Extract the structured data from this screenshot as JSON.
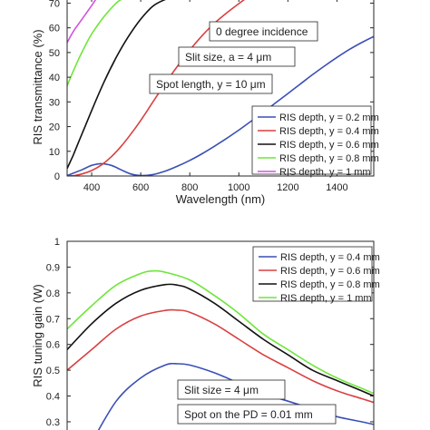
{
  "chart_data": [
    {
      "type": "line",
      "xlabel": "Wavelength (nm)",
      "ylabel": "RIS transmittance (%)",
      "xlim": [
        300,
        1550
      ],
      "ylim": [
        0,
        72
      ],
      "xticks": [
        400,
        600,
        800,
        1000,
        1200,
        1400
      ],
      "yticks": [
        0,
        10,
        20,
        30,
        40,
        50,
        60,
        70
      ],
      "grid": false,
      "legend_position": "bottom-right",
      "annotations": [
        "0 degree incidence",
        "Slit size, a = 4 μm",
        "Spot length, y = 10 μm"
      ],
      "series": [
        {
          "name": "RIS depth, y = 0.2 mm",
          "color": "#3b4fb5",
          "x": [
            300,
            360,
            400,
            440,
            480,
            520,
            560,
            600,
            650,
            700,
            750,
            800,
            850,
            900,
            950,
            1000,
            1050,
            1100,
            1150,
            1200,
            1250,
            1300,
            1350,
            1400,
            1450,
            1500,
            1550
          ],
          "y": [
            0.2,
            2.5,
            4.3,
            5.0,
            4.3,
            2.5,
            0.8,
            0.2,
            0.6,
            2.0,
            4.0,
            6.3,
            9.0,
            12.0,
            15.2,
            18.6,
            22.2,
            25.8,
            29.6,
            33.4,
            37.2,
            41.0,
            44.6,
            48.0,
            51.2,
            54.0,
            56.5
          ]
        },
        {
          "name": "RIS depth, y = 0.4 mm",
          "color": "#d94040",
          "x": [
            300,
            330,
            360,
            400,
            440,
            480,
            520,
            560,
            600,
            650,
            700,
            750,
            800,
            850,
            900,
            950,
            1000,
            1030
          ],
          "y": [
            0.0,
            0.2,
            0.8,
            2.2,
            4.5,
            7.8,
            12.0,
            17.0,
            22.5,
            30.0,
            37.5,
            44.5,
            51.0,
            56.8,
            61.8,
            66.0,
            69.8,
            72.0
          ]
        },
        {
          "name": "RIS depth, y = 0.6 mm",
          "color": "#111111",
          "x": [
            300,
            325,
            350,
            375,
            400,
            450,
            500,
            550,
            600,
            650,
            700,
            720
          ],
          "y": [
            3.0,
            8.5,
            14.5,
            20.5,
            26.5,
            38.0,
            48.0,
            56.5,
            63.5,
            68.8,
            71.5,
            72.0
          ]
        },
        {
          "name": "RIS depth, y = 0.8 mm",
          "color": "#6ee63a",
          "x": [
            300,
            325,
            350,
            375,
            400,
            450,
            500,
            530
          ],
          "y": [
            36.5,
            42.5,
            48.0,
            53.0,
            57.5,
            64.5,
            70.0,
            72.0
          ]
        },
        {
          "name": "RIS depth, y = 1 mm",
          "color": "#d452e0",
          "x": [
            300,
            325,
            350,
            375,
            400,
            420
          ],
          "y": [
            54.0,
            58.5,
            62.0,
            65.5,
            69.0,
            72.0
          ]
        }
      ]
    },
    {
      "type": "line",
      "xlabel": "",
      "ylabel": "RIS tuning gain (W)",
      "xlim": [
        300,
        1550
      ],
      "ylim": [
        0.24,
        1.0
      ],
      "yticks": [
        0.3,
        0.4,
        0.5,
        0.6,
        0.7,
        0.8,
        0.9,
        1
      ],
      "ytick_labels": [
        "0.3",
        "0.4",
        "0.5",
        "0.6",
        "0.7",
        "0.8",
        "0.9",
        "1"
      ],
      "grid": false,
      "legend_position": "top-right",
      "annotations": [
        "Slit size = 4 μm",
        "Spot on the PD = 0.01 mm"
      ],
      "series": [
        {
          "name": "RIS depth, y = 0.4 mm",
          "color": "#3b4fb5",
          "x": [
            400,
            500,
            600,
            700,
            750,
            800,
            900,
            1000,
            1100,
            1200,
            1300,
            1400,
            1500,
            1550
          ],
          "y": [
            0.22,
            0.38,
            0.47,
            0.52,
            0.525,
            0.52,
            0.49,
            0.45,
            0.41,
            0.38,
            0.35,
            0.32,
            0.3,
            0.29
          ]
        },
        {
          "name": "RIS depth, y = 0.6 mm",
          "color": "#d94040",
          "x": [
            300,
            400,
            500,
            600,
            700,
            750,
            800,
            900,
            1000,
            1100,
            1200,
            1300,
            1400,
            1500,
            1550
          ],
          "y": [
            0.5,
            0.58,
            0.66,
            0.71,
            0.732,
            0.733,
            0.725,
            0.68,
            0.62,
            0.56,
            0.51,
            0.46,
            0.42,
            0.39,
            0.375
          ]
        },
        {
          "name": "RIS depth, y = 0.8 mm",
          "color": "#111111",
          "x": [
            300,
            400,
            500,
            600,
            700,
            750,
            800,
            900,
            1000,
            1100,
            1200,
            1300,
            1400,
            1500,
            1550
          ],
          "y": [
            0.58,
            0.68,
            0.76,
            0.81,
            0.832,
            0.83,
            0.815,
            0.76,
            0.69,
            0.62,
            0.56,
            0.5,
            0.46,
            0.42,
            0.4
          ]
        },
        {
          "name": "RIS depth, y = 1 mm",
          "color": "#6ee63a",
          "x": [
            300,
            400,
            500,
            600,
            650,
            700,
            800,
            900,
            1000,
            1100,
            1200,
            1300,
            1400,
            1500,
            1550
          ],
          "y": [
            0.66,
            0.75,
            0.83,
            0.875,
            0.885,
            0.88,
            0.85,
            0.79,
            0.72,
            0.64,
            0.58,
            0.52,
            0.47,
            0.43,
            0.41
          ]
        }
      ]
    }
  ]
}
